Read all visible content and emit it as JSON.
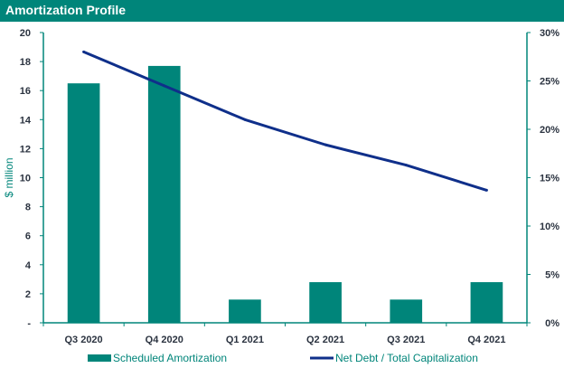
{
  "header": {
    "title": "Amortization Profile"
  },
  "colors": {
    "header_bg": "#00857a",
    "bar": "#00857a",
    "line": "#0f2f8a",
    "axis": "#00857a"
  },
  "chart_data": {
    "type": "bar",
    "title": "Amortization Profile",
    "categories": [
      "Q3 2020",
      "Q4 2020",
      "Q1 2021",
      "Q2 2021",
      "Q3 2021",
      "Q4 2021"
    ],
    "ylabel": "$ million",
    "ylim": [
      0,
      20
    ],
    "y_ticks": [
      0,
      2,
      4,
      6,
      8,
      10,
      12,
      14,
      16,
      18,
      20
    ],
    "y_tick_labels": [
      "-",
      "2",
      "4",
      "6",
      "8",
      "10",
      "12",
      "14",
      "16",
      "18",
      "20"
    ],
    "y2lim": [
      0,
      30
    ],
    "y2_ticks": [
      0,
      5,
      10,
      15,
      20,
      25,
      30
    ],
    "y2_tick_labels": [
      "0%",
      "5%",
      "10%",
      "15%",
      "20%",
      "25%",
      "30%"
    ],
    "grid": false,
    "legend_position": "bottom",
    "series": [
      {
        "name": "Scheduled Amortization",
        "type": "bar",
        "axis": "left",
        "values": [
          16.5,
          17.7,
          1.6,
          2.8,
          1.6,
          2.8
        ]
      },
      {
        "name": "Net Debt / Total Capitalization",
        "type": "line",
        "axis": "right",
        "values": [
          28.0,
          24.5,
          21.0,
          18.4,
          16.3,
          13.7
        ]
      }
    ]
  }
}
